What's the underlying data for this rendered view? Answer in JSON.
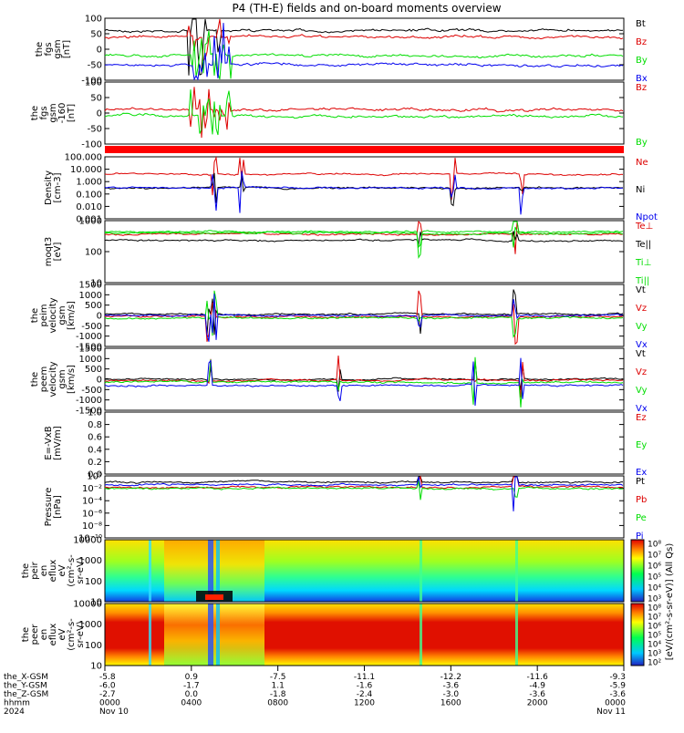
{
  "title": "P4 (TH-E) fields and on-board moments overview",
  "colors": {
    "black": "#000000",
    "red": "#dd0000",
    "green": "#00dd00",
    "blue": "#0000ee",
    "band": "#ff0000"
  },
  "chart_data": [
    {
      "type": "line",
      "ylabel": [
        "the",
        "fgs",
        "gsm",
        "[nT]"
      ],
      "yticks": [
        "100",
        "50",
        "0",
        "-50",
        "-100"
      ],
      "series": [
        {
          "name": "Bt",
          "color": "black"
        },
        {
          "name": "Bz",
          "color": "red"
        },
        {
          "name": "By",
          "color": "green"
        },
        {
          "name": "Bx",
          "color": "blue"
        }
      ]
    },
    {
      "type": "line",
      "ylabel": [
        "the",
        "fgs",
        "gsm",
        "-160",
        "[nT]"
      ],
      "yticks": [
        "100",
        "50",
        "0",
        "-50",
        "-100"
      ],
      "series": [
        {
          "name": "Bz",
          "color": "red"
        },
        {
          "name": "By",
          "color": "green"
        }
      ]
    },
    {
      "type": "line",
      "ylabel": [
        "Density",
        "[cm-3]"
      ],
      "yticks": [
        "100.000",
        "10.000",
        "1.000",
        "0.100",
        "0.010",
        "0.001"
      ],
      "series": [
        {
          "name": "Ne",
          "color": "red"
        },
        {
          "name": "Ni",
          "color": "black"
        },
        {
          "name": "Npot",
          "color": "blue"
        }
      ]
    },
    {
      "type": "line",
      "ylabel": [
        "moqt3",
        "[eV]"
      ],
      "yticks": [
        "1000",
        "100",
        "10"
      ],
      "series": [
        {
          "name": "Te⊥",
          "color": "red"
        },
        {
          "name": "Te||",
          "color": "black"
        },
        {
          "name": "Ti⊥",
          "color": "green"
        },
        {
          "name": "Ti||",
          "color": "green"
        }
      ]
    },
    {
      "type": "line",
      "ylabel": [
        "the",
        "peim",
        "velocity",
        "gsm",
        "[km/s]"
      ],
      "yticks": [
        "1500",
        "1000",
        "500",
        "0",
        "-500",
        "-1000",
        "-1500"
      ],
      "series": [
        {
          "name": "Vt",
          "color": "black"
        },
        {
          "name": "Vz",
          "color": "red"
        },
        {
          "name": "Vy",
          "color": "green"
        },
        {
          "name": "Vx",
          "color": "blue"
        }
      ]
    },
    {
      "type": "line",
      "ylabel": [
        "the",
        "peem",
        "velocity",
        "gsm",
        "[km/s]"
      ],
      "yticks": [
        "1500",
        "1000",
        "500",
        "0",
        "-500",
        "-1000",
        "-1500"
      ],
      "series": [
        {
          "name": "Vt",
          "color": "black"
        },
        {
          "name": "Vz",
          "color": "red"
        },
        {
          "name": "Vy",
          "color": "green"
        },
        {
          "name": "Vx",
          "color": "blue"
        }
      ]
    },
    {
      "type": "line",
      "ylabel": [
        "E=-VxB",
        "[mV/m]"
      ],
      "yticks": [
        "1.0",
        "0.8",
        "0.6",
        "0.4",
        "0.2",
        "0.0"
      ],
      "series": [
        {
          "name": "Ez",
          "color": "red"
        },
        {
          "name": "Ey",
          "color": "green"
        },
        {
          "name": "Ex",
          "color": "blue"
        }
      ]
    },
    {
      "type": "line",
      "ylabel": [
        "Pressure",
        "[nPa]"
      ],
      "yticks": [
        "10⁰",
        "10⁻²",
        "10⁻⁴",
        "10⁻⁶",
        "10⁻⁸",
        "10⁻¹⁰"
      ],
      "series": [
        {
          "name": "Pt",
          "color": "black"
        },
        {
          "name": "Pb",
          "color": "red"
        },
        {
          "name": "Pe",
          "color": "green"
        },
        {
          "name": "Pi",
          "color": "blue"
        }
      ]
    },
    {
      "type": "heatmap",
      "ylabel": [
        "the",
        "peir",
        "en",
        "eflux",
        "eV",
        "(cm²-s-",
        "sr-eV)"
      ],
      "yticks": [
        "10000",
        "1000",
        "100",
        "10"
      ],
      "colorbar_ticks": [
        "10⁸",
        "10⁷",
        "10⁶",
        "10⁵",
        "10⁴",
        "10³"
      ]
    },
    {
      "type": "heatmap",
      "ylabel": [
        "the",
        "peer",
        "en",
        "eflux",
        "eV",
        "(cm²-s-",
        "sr-eV)"
      ],
      "yticks": [
        "10000",
        "1000",
        "100",
        "10"
      ],
      "colorbar_ticks": [
        "10⁸",
        "10⁷",
        "10⁶",
        "10⁵",
        "10⁴",
        "10³",
        "10²"
      ]
    }
  ],
  "colorbar_label": "[eV/(cm²-s-sr-eV)] (All Qs)",
  "ephemeris": {
    "labels": [
      "the_X-GSM",
      "the_Y-GSM",
      "the_Z-GSM",
      "hhmm",
      "2024"
    ],
    "columns": [
      [
        "-5.8",
        "-6.0",
        "-2.7",
        "0000",
        "Nov 10"
      ],
      [
        "0.9",
        "-1.7",
        "0.0",
        "0400",
        ""
      ],
      [
        "-7.5",
        "1.1",
        "-1.8",
        "0800",
        ""
      ],
      [
        "-11.1",
        "-1.6",
        "-2.4",
        "1200",
        ""
      ],
      [
        "-12.2",
        "-3.6",
        "-3.0",
        "1600",
        ""
      ],
      [
        "-11.6",
        "-4.9",
        "-3.6",
        "2000",
        ""
      ],
      [
        "-9.3",
        "-5.9",
        "-3.6",
        "0000",
        "Nov 11"
      ]
    ]
  }
}
